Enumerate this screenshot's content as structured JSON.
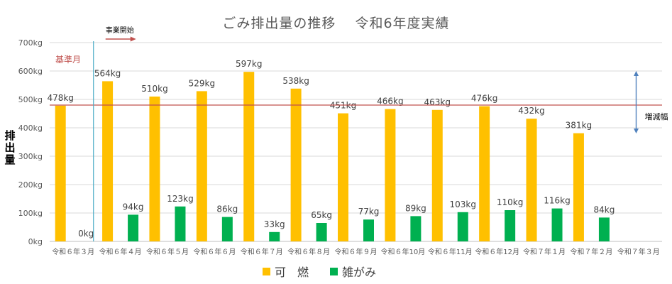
{
  "chart_data": {
    "type": "bar",
    "title": "ごみ排出量の推移　 令和6年度実績",
    "ylabel": "排出量",
    "ylim": [
      0,
      700
    ],
    "yticks": [
      "0kg",
      "100kg",
      "200kg",
      "300kg",
      "400kg",
      "500kg",
      "600kg",
      "700kg"
    ],
    "categories": [
      "令和６年３月",
      "令和６年４月",
      "令和６年５月",
      "令和６年６月",
      "令和６年７月",
      "令和６年８月",
      "令和６年９月",
      "令和６年10月",
      "令和６年11月",
      "令和６年12月",
      "令和７年１月",
      "令和７年２月",
      "令和７年３月"
    ],
    "series": [
      {
        "name": "可　燃",
        "color": "#FFC000",
        "values": [
          478,
          564,
          510,
          529,
          597,
          538,
          451,
          466,
          463,
          476,
          432,
          381,
          null
        ],
        "labels": [
          "478kg",
          "564kg",
          "510kg",
          "529kg",
          "597kg",
          "538kg",
          "451kg",
          "466kg",
          "463kg",
          "476kg",
          "432kg",
          "381kg",
          ""
        ]
      },
      {
        "name": "雑がみ",
        "color": "#00B050",
        "values": [
          0,
          94,
          123,
          86,
          33,
          65,
          77,
          89,
          103,
          110,
          116,
          84,
          null
        ],
        "labels": [
          "0kg",
          "94kg",
          "123kg",
          "86kg",
          "33kg",
          "65kg",
          "77kg",
          "89kg",
          "103kg",
          "110kg",
          "116kg",
          "84kg",
          ""
        ]
      }
    ],
    "reference_line": {
      "label": "基準月",
      "value": 480,
      "color": "#C0504D"
    },
    "start_marker": {
      "label": "事業開始",
      "color": "#4BACC6",
      "arrow_color": "#C0504D"
    },
    "range_annotation": {
      "label": "増減幅",
      "from": 380,
      "to": 600,
      "color": "#4F81BD"
    },
    "grid": true,
    "legend_position": "bottom"
  }
}
